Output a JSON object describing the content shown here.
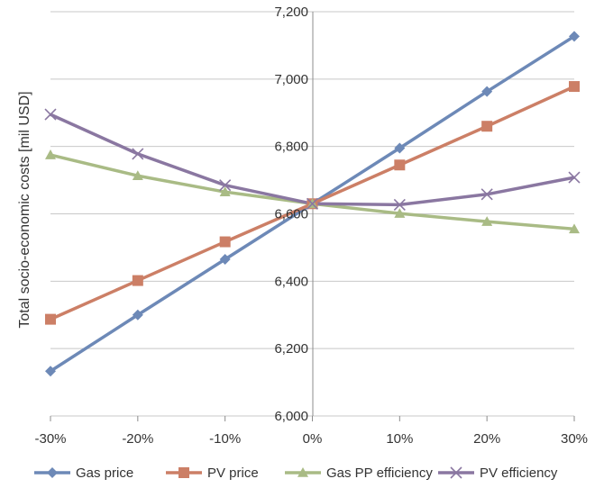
{
  "chart_data": {
    "type": "line",
    "title": "",
    "xlabel": "",
    "ylabel": "Total socio-economic costs [mil USD]",
    "categories": [
      "-30%",
      "-20%",
      "-10%",
      "0%",
      "10%",
      "20%",
      "30%"
    ],
    "ylim": [
      6000,
      7200
    ],
    "yticks": [
      6000,
      6200,
      6400,
      6600,
      6800,
      7000,
      7200
    ],
    "ytick_labels": [
      "6,000",
      "6,200",
      "6,400",
      "6,600",
      "6,800",
      "7,000",
      "7,200"
    ],
    "grid": "horizontal",
    "legend_position": "bottom",
    "series": [
      {
        "name": "Gas price",
        "color": "#6d89b7",
        "marker": "diamond",
        "values": [
          6133,
          6300,
          6465,
          6630,
          6795,
          6963,
          7127
        ]
      },
      {
        "name": "PV price",
        "color": "#cc7f66",
        "marker": "square",
        "values": [
          6287,
          6402,
          6517,
          6630,
          6745,
          6860,
          6978
        ]
      },
      {
        "name": "Gas PP efficiency",
        "color": "#a9bb85",
        "marker": "triangle",
        "values": [
          6775,
          6713,
          6665,
          6630,
          6601,
          6577,
          6555
        ]
      },
      {
        "name": "PV efficiency",
        "color": "#8a77a1",
        "marker": "x",
        "values": [
          6895,
          6778,
          6685,
          6630,
          6627,
          6658,
          6708
        ]
      }
    ]
  }
}
